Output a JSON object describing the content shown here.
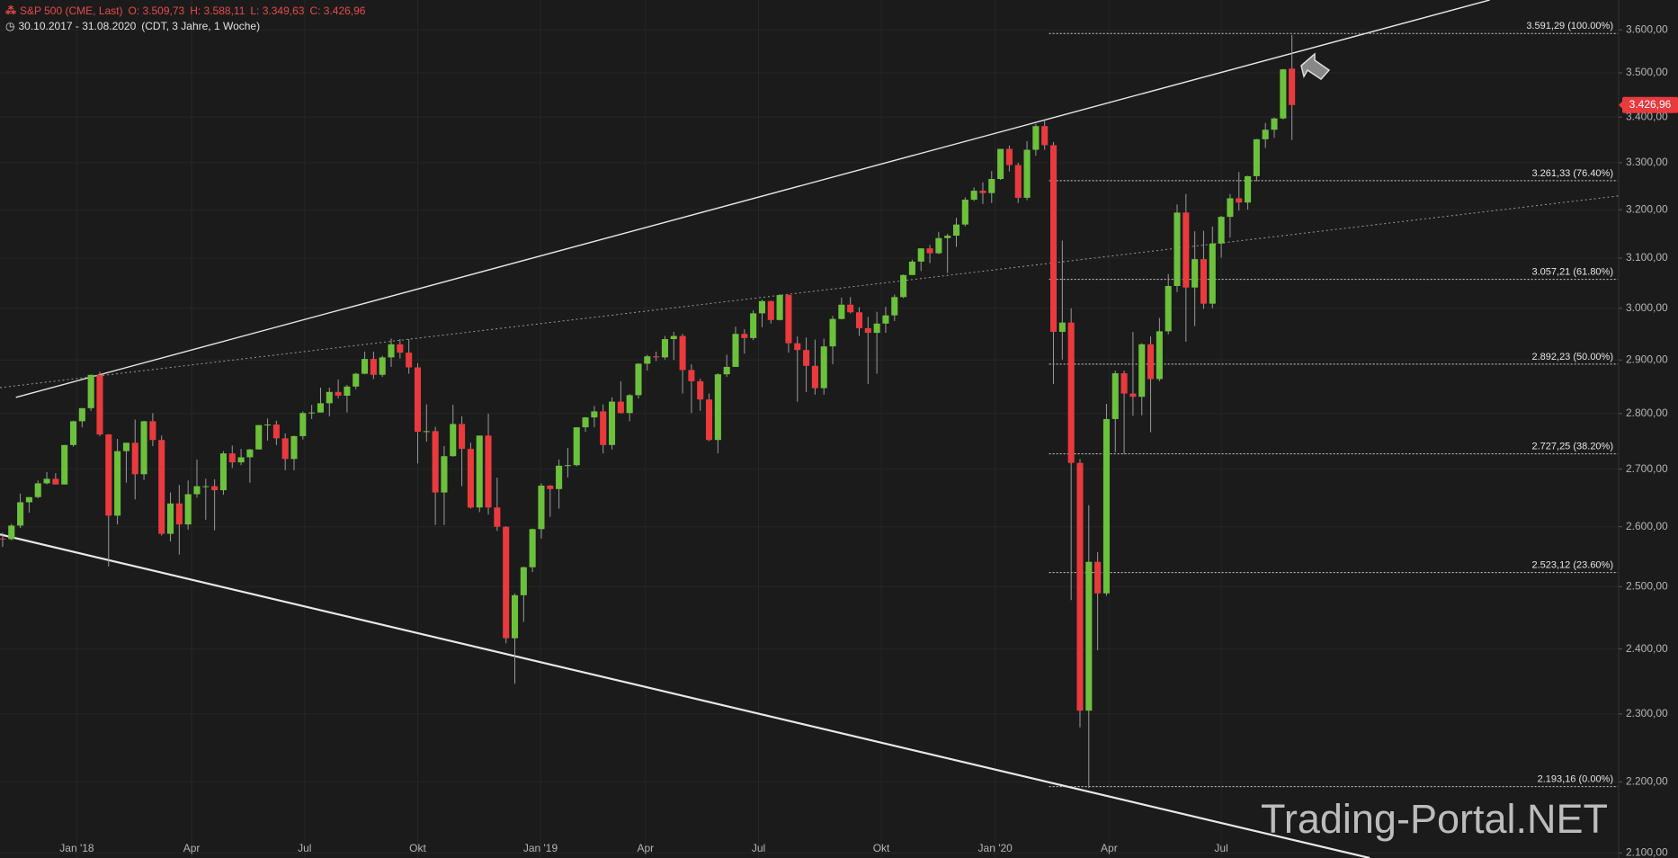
{
  "chart_data": {
    "type": "candlestick",
    "title": "S&P 500 (CME, Last)",
    "header_values": [
      "O: 3.509,73",
      "H: 3.588,11",
      "L: 3.349,63",
      "C: 3.426,96"
    ],
    "subtitle": "30.10.2017 - 31.08.2020",
    "subtitle_note": "(CDT, 3 Jahre, 1 Woche)",
    "watermark": "Trading-Portal.NET",
    "up_color": "#6cc13c",
    "down_color": "#ea3a3d",
    "log_scale": true,
    "grid": true,
    "xlim": [
      -0.3,
      183
    ],
    "xticks": [
      {
        "value": 8.4,
        "label": "Jan '18"
      },
      {
        "value": 21.4,
        "label": "Apr"
      },
      {
        "value": 34.2,
        "label": "Jul"
      },
      {
        "value": 47.0,
        "label": "Okt"
      },
      {
        "value": 60.9,
        "label": "Jan '19"
      },
      {
        "value": 72.8,
        "label": "Apr"
      },
      {
        "value": 85.6,
        "label": "Jul"
      },
      {
        "value": 99.5,
        "label": "Okt"
      },
      {
        "value": 112.4,
        "label": "Jan '20"
      },
      {
        "value": 125.3,
        "label": "Apr"
      },
      {
        "value": 138.0,
        "label": "Jul"
      }
    ],
    "ylim": [
      2093,
      3671
    ],
    "yticks": [
      {
        "value": 2100,
        "label": "2.100,00"
      },
      {
        "value": 2200,
        "label": "2.200,00"
      },
      {
        "value": 2300,
        "label": "2.300,00"
      },
      {
        "value": 2400,
        "label": "2.400,00"
      },
      {
        "value": 2500,
        "label": "2.500,00"
      },
      {
        "value": 2600,
        "label": "2.600,00"
      },
      {
        "value": 2700,
        "label": "2.700,00"
      },
      {
        "value": 2800,
        "label": "2.800,00"
      },
      {
        "value": 2900,
        "label": "2.900,00"
      },
      {
        "value": 3000,
        "label": "3.000,00"
      },
      {
        "value": 3100,
        "label": "3.100,00"
      },
      {
        "value": 3200,
        "label": "3.200,00"
      },
      {
        "value": 3300,
        "label": "3.300,00"
      },
      {
        "value": 3400,
        "label": "3.400,00"
      },
      {
        "value": 3500,
        "label": "3.500,00"
      },
      {
        "value": 3600,
        "label": "3.600,00"
      }
    ],
    "last_price": {
      "value": 3426.96,
      "label": "3.426,96"
    },
    "levels_start": 118.5,
    "levels": [
      {
        "value": 3591.29,
        "label": "3.591,29 (100.00%)"
      },
      {
        "value": 3261.33,
        "label": "3.261,33 (76.40%)"
      },
      {
        "value": 3057.21,
        "label": "3.057,21 (61.80%)"
      },
      {
        "value": 2892.23,
        "label": "2.892,23 (50.00%)"
      },
      {
        "value": 2727.25,
        "label": "2.727,25 (38.20%)"
      },
      {
        "value": 2523.12,
        "label": "2.523,12 (23.60%)"
      },
      {
        "value": 2193.16,
        "label": "2.193,16 (0.00%)"
      }
    ],
    "trend_lines": [
      {
        "x": [
          1.5,
          168.4
        ],
        "y": [
          2830,
          3671
        ],
        "style": "solid"
      },
      {
        "x": [
          -0.3,
          183
        ],
        "y": [
          2848,
          3229
        ],
        "style": "dotted"
      },
      {
        "x": [
          -0.3,
          154.8
        ],
        "y": [
          2587,
          2093
        ],
        "style": "solid"
      }
    ],
    "ohlc": [
      [
        2580,
        2590,
        2566,
        2579
      ],
      [
        2579,
        2605,
        2577,
        2602
      ],
      [
        2602,
        2657,
        2598,
        2642
      ],
      [
        2642,
        2651,
        2624,
        2651
      ],
      [
        2651,
        2680,
        2649,
        2675
      ],
      [
        2675,
        2695,
        2673,
        2683
      ],
      [
        2683,
        2693,
        2673,
        2673
      ],
      [
        2673,
        2743,
        2673,
        2743
      ],
      [
        2743,
        2787,
        2740,
        2786
      ],
      [
        2786,
        2810,
        2775,
        2810
      ],
      [
        2810,
        2872,
        2805,
        2872
      ],
      [
        2872,
        2878,
        2759,
        2762
      ],
      [
        2762,
        2763,
        2533,
        2619
      ],
      [
        2619,
        2754,
        2604,
        2732
      ],
      [
        2732,
        2747,
        2676,
        2747
      ],
      [
        2747,
        2789,
        2647,
        2691
      ],
      [
        2691,
        2787,
        2681,
        2786
      ],
      [
        2786,
        2801,
        2741,
        2752
      ],
      [
        2752,
        2760,
        2585,
        2588
      ],
      [
        2588,
        2659,
        2575,
        2640
      ],
      [
        2640,
        2672,
        2553,
        2604
      ],
      [
        2604,
        2680,
        2595,
        2656
      ],
      [
        2656,
        2717,
        2650,
        2670
      ],
      [
        2670,
        2683,
        2612,
        2670
      ],
      [
        2670,
        2682,
        2594,
        2663
      ],
      [
        2663,
        2732,
        2655,
        2728
      ],
      [
        2728,
        2742,
        2702,
        2712
      ],
      [
        2712,
        2736,
        2707,
        2721
      ],
      [
        2721,
        2736,
        2676,
        2735
      ],
      [
        2735,
        2779,
        2735,
        2779
      ],
      [
        2779,
        2791,
        2751,
        2780
      ],
      [
        2780,
        2787,
        2743,
        2755
      ],
      [
        2755,
        2764,
        2698,
        2718
      ],
      [
        2718,
        2760,
        2698,
        2759
      ],
      [
        2759,
        2804,
        2753,
        2801
      ],
      [
        2801,
        2816,
        2790,
        2802
      ],
      [
        2802,
        2848,
        2802,
        2819
      ],
      [
        2819,
        2848,
        2795,
        2840
      ],
      [
        2840,
        2863,
        2828,
        2833
      ],
      [
        2833,
        2853,
        2802,
        2850
      ],
      [
        2850,
        2876,
        2845,
        2874
      ],
      [
        2874,
        2916,
        2873,
        2902
      ],
      [
        2902,
        2916,
        2864,
        2872
      ],
      [
        2872,
        2908,
        2868,
        2905
      ],
      [
        2905,
        2941,
        2887,
        2930
      ],
      [
        2930,
        2940,
        2903,
        2914
      ],
      [
        2914,
        2940,
        2874,
        2886
      ],
      [
        2886,
        2894,
        2710,
        2767
      ],
      [
        2767,
        2817,
        2749,
        2768
      ],
      [
        2768,
        2776,
        2603,
        2659
      ],
      [
        2659,
        2741,
        2603,
        2723
      ],
      [
        2723,
        2816,
        2722,
        2781
      ],
      [
        2781,
        2795,
        2670,
        2736
      ],
      [
        2736,
        2747,
        2631,
        2633
      ],
      [
        2633,
        2760,
        2625,
        2760
      ],
      [
        2760,
        2800,
        2621,
        2633
      ],
      [
        2633,
        2685,
        2593,
        2600
      ],
      [
        2600,
        2601,
        2409,
        2417
      ],
      [
        2417,
        2489,
        2346,
        2486
      ],
      [
        2486,
        2533,
        2443,
        2532
      ],
      [
        2532,
        2597,
        2524,
        2596
      ],
      [
        2596,
        2675,
        2580,
        2671
      ],
      [
        2671,
        2672,
        2617,
        2665
      ],
      [
        2665,
        2717,
        2631,
        2706
      ],
      [
        2706,
        2738,
        2685,
        2707
      ],
      [
        2707,
        2775,
        2705,
        2775
      ],
      [
        2775,
        2794,
        2767,
        2793
      ],
      [
        2793,
        2814,
        2775,
        2804
      ],
      [
        2804,
        2817,
        2728,
        2743
      ],
      [
        2743,
        2830,
        2735,
        2822
      ],
      [
        2822,
        2860,
        2800,
        2801
      ],
      [
        2801,
        2836,
        2786,
        2834
      ],
      [
        2834,
        2894,
        2828,
        2893
      ],
      [
        2893,
        2910,
        2880,
        2907
      ],
      [
        2907,
        2916,
        2898,
        2905
      ],
      [
        2905,
        2946,
        2901,
        2940
      ],
      [
        2940,
        2954,
        2900,
        2946
      ],
      [
        2946,
        2950,
        2837,
        2881
      ],
      [
        2881,
        2892,
        2801,
        2860
      ],
      [
        2860,
        2865,
        2805,
        2826
      ],
      [
        2826,
        2837,
        2750,
        2752
      ],
      [
        2752,
        2875,
        2728,
        2873
      ],
      [
        2873,
        2910,
        2868,
        2887
      ],
      [
        2887,
        2964,
        2887,
        2950
      ],
      [
        2950,
        2959,
        2912,
        2942
      ],
      [
        2942,
        2996,
        2938,
        2990
      ],
      [
        2990,
        3017,
        2963,
        3014
      ],
      [
        3014,
        3015,
        2970,
        2977
      ],
      [
        2977,
        3028,
        2976,
        3026
      ],
      [
        3026,
        3027,
        2914,
        2932
      ],
      [
        2932,
        2945,
        2822,
        2919
      ],
      [
        2919,
        2943,
        2840,
        2889
      ],
      [
        2889,
        2939,
        2835,
        2847
      ],
      [
        2847,
        2941,
        2835,
        2926
      ],
      [
        2926,
        2985,
        2892,
        2979
      ],
      [
        2979,
        3021,
        2978,
        3007
      ],
      [
        3007,
        3022,
        2990,
        2992
      ],
      [
        2992,
        3002,
        2946,
        2961
      ],
      [
        2961,
        2983,
        2855,
        2952
      ],
      [
        2952,
        2993,
        2874,
        2970
      ],
      [
        2970,
        3003,
        2952,
        2986
      ],
      [
        2986,
        3027,
        2975,
        3022
      ],
      [
        3022,
        3067,
        3020,
        3066
      ],
      [
        3066,
        3097,
        3066,
        3093
      ],
      [
        3093,
        3120,
        3074,
        3120
      ],
      [
        3120,
        3127,
        3090,
        3110
      ],
      [
        3110,
        3154,
        3108,
        3141
      ],
      [
        3141,
        3150,
        3070,
        3146
      ],
      [
        3146,
        3183,
        3123,
        3169
      ],
      [
        3169,
        3226,
        3165,
        3221
      ],
      [
        3221,
        3247,
        3218,
        3240
      ],
      [
        3240,
        3258,
        3212,
        3235
      ],
      [
        3235,
        3282,
        3214,
        3265
      ],
      [
        3265,
        3330,
        3263,
        3330
      ],
      [
        3330,
        3337,
        3281,
        3295
      ],
      [
        3295,
        3300,
        3214,
        3225
      ],
      [
        3225,
        3347,
        3220,
        3328
      ],
      [
        3328,
        3385,
        3315,
        3380
      ],
      [
        3380,
        3393,
        3328,
        3338
      ],
      [
        3338,
        3345,
        2855,
        2954
      ],
      [
        2954,
        3136,
        2901,
        2972
      ],
      [
        2972,
        3000,
        2478,
        2711
      ],
      [
        2711,
        2718,
        2280,
        2305
      ],
      [
        2305,
        2637,
        2191,
        2541
      ],
      [
        2541,
        2557,
        2398,
        2489
      ],
      [
        2489,
        2818,
        2485,
        2790
      ],
      [
        2790,
        2880,
        2730,
        2875
      ],
      [
        2875,
        2880,
        2727,
        2837
      ],
      [
        2837,
        2954,
        2796,
        2831
      ],
      [
        2831,
        2932,
        2797,
        2930
      ],
      [
        2930,
        2945,
        2766,
        2864
      ],
      [
        2864,
        2981,
        2860,
        2955
      ],
      [
        2955,
        3068,
        2949,
        3044
      ],
      [
        3044,
        3211,
        3032,
        3194
      ],
      [
        3194,
        3233,
        2935,
        3041
      ],
      [
        3041,
        3155,
        2965,
        3098
      ],
      [
        3098,
        3156,
        2999,
        3009
      ],
      [
        3009,
        3165,
        3000,
        3130
      ],
      [
        3130,
        3187,
        3101,
        3185
      ],
      [
        3185,
        3233,
        3142,
        3224
      ],
      [
        3224,
        3280,
        3198,
        3215
      ],
      [
        3215,
        3272,
        3200,
        3271
      ],
      [
        3271,
        3352,
        3260,
        3351
      ],
      [
        3351,
        3387,
        3332,
        3372
      ],
      [
        3372,
        3399,
        3354,
        3397
      ],
      [
        3397,
        3509,
        3395,
        3508
      ],
      [
        3509.73,
        3588.11,
        3349.63,
        3426.96
      ]
    ]
  }
}
